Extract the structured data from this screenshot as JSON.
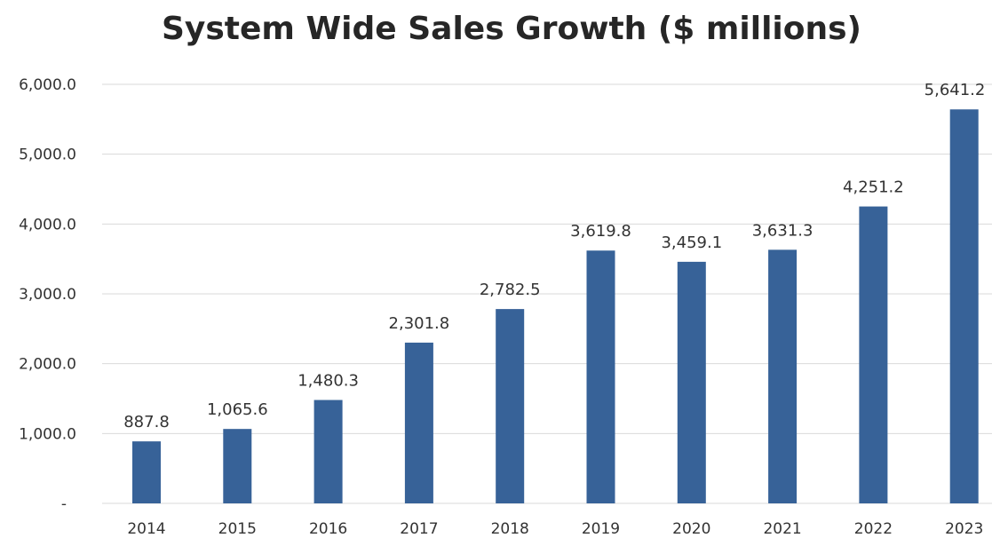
{
  "chart_data": {
    "type": "bar",
    "title": "System Wide Sales Growth ($ millions)",
    "xlabel": "",
    "ylabel": "",
    "categories": [
      "2014",
      "2015",
      "2016",
      "2017",
      "2018",
      "2019",
      "2020",
      "2021",
      "2022",
      "2023"
    ],
    "values": [
      887.8,
      1065.6,
      1480.3,
      2301.8,
      2782.5,
      3619.8,
      3459.1,
      3631.3,
      4251.2,
      5641.2
    ],
    "data_labels": [
      "887.8",
      "1,065.6",
      "1,480.3",
      "2,301.8",
      "2,782.5",
      "3,619.8",
      "3,459.1",
      "3,631.3",
      "4,251.2",
      "5,641.2"
    ],
    "ylim": [
      0,
      6000
    ],
    "yticks": [
      0,
      1000,
      2000,
      3000,
      4000,
      5000,
      6000
    ],
    "ytick_labels": [
      "-",
      "1,000.0",
      "2,000.0",
      "3,000.0",
      "4,000.0",
      "5,000.0",
      "6,000.0"
    ],
    "grid": true,
    "legend": "none",
    "bar_color": "#376298",
    "grid_color": "#d9d9d9"
  }
}
